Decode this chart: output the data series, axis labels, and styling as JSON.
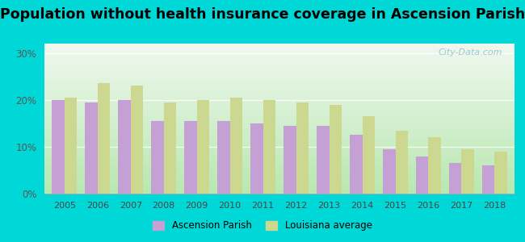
{
  "title": "Population without health insurance coverage in Ascension Parish",
  "years": [
    2005,
    2006,
    2007,
    2008,
    2009,
    2010,
    2011,
    2012,
    2013,
    2014,
    2015,
    2016,
    2017,
    2018
  ],
  "ascension": [
    20.0,
    19.5,
    20.0,
    15.5,
    15.5,
    15.5,
    15.0,
    14.5,
    14.5,
    12.5,
    9.5,
    8.0,
    6.5,
    6.0
  ],
  "louisiana": [
    20.5,
    23.5,
    23.0,
    19.5,
    20.0,
    20.5,
    20.0,
    19.5,
    19.0,
    16.5,
    13.5,
    12.0,
    9.5,
    9.0
  ],
  "ascension_color": "#c4a0d4",
  "louisiana_color": "#ccd890",
  "background_outer": "#00d8d8",
  "background_inner_bottom": "#b8e8b0",
  "background_inner_top": "#f0f8f0",
  "yticks": [
    0,
    10,
    20,
    30
  ],
  "ylim": [
    0,
    32
  ],
  "bar_width": 0.38,
  "title_fontsize": 12.5,
  "legend_label_ascension": "Ascension Parish",
  "legend_label_louisiana": "Louisiana average",
  "watermark": "City-Data.com"
}
